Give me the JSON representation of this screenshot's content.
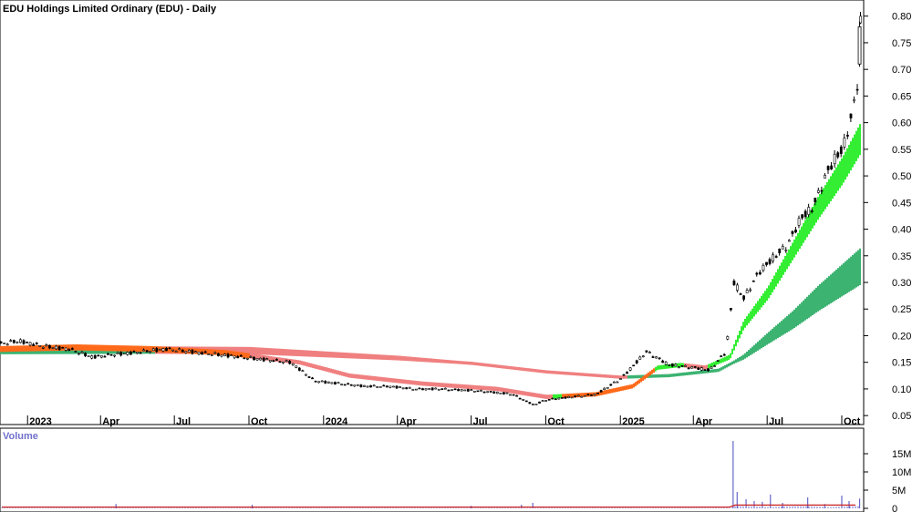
{
  "chart_data": {
    "type": "candlestick",
    "title": "EDU Holdings Limited Ordinary (EDU) - Daily",
    "y_ticks": [
      "0.80",
      "0.75",
      "0.70",
      "0.65",
      "0.60",
      "0.55",
      "0.50",
      "0.45",
      "0.40",
      "0.35",
      "0.30",
      "0.25",
      "0.20",
      "0.15",
      "0.10",
      "0.05"
    ],
    "ylim": [
      0.04,
      0.82
    ],
    "x_ticks": [
      {
        "label": "2023",
        "date": "2023-01-01"
      },
      {
        "label": "Apr",
        "date": "2023-04-01"
      },
      {
        "label": "Jul",
        "date": "2023-07-01"
      },
      {
        "label": "Oct",
        "date": "2023-10-01"
      },
      {
        "label": "2024",
        "date": "2024-01-01"
      },
      {
        "label": "Apr",
        "date": "2024-04-01"
      },
      {
        "label": "Jul",
        "date": "2024-07-01"
      },
      {
        "label": "Oct",
        "date": "2024-10-01"
      },
      {
        "label": "2025",
        "date": "2025-01-01"
      },
      {
        "label": "Apr",
        "date": "2025-04-01"
      },
      {
        "label": "Jul",
        "date": "2025-07-01"
      },
      {
        "label": "Oct",
        "date": "2025-10-01"
      }
    ],
    "xlim": [
      "2022-11-28",
      "2025-10-28"
    ],
    "price": [
      [
        "2022-11-28",
        0.185
      ],
      [
        "2022-12-20",
        0.19
      ],
      [
        "2023-01-20",
        0.18
      ],
      [
        "2023-02-20",
        0.175
      ],
      [
        "2023-03-20",
        0.16
      ],
      [
        "2023-04-20",
        0.165
      ],
      [
        "2023-05-20",
        0.17
      ],
      [
        "2023-06-20",
        0.175
      ],
      [
        "2023-07-20",
        0.17
      ],
      [
        "2023-08-20",
        0.165
      ],
      [
        "2023-09-20",
        0.16
      ],
      [
        "2023-10-20",
        0.155
      ],
      [
        "2023-11-20",
        0.15
      ],
      [
        "2023-12-20",
        0.115
      ],
      [
        "2024-01-20",
        0.11
      ],
      [
        "2024-02-20",
        0.105
      ],
      [
        "2024-03-20",
        0.105
      ],
      [
        "2024-04-20",
        0.1
      ],
      [
        "2024-05-20",
        0.1
      ],
      [
        "2024-06-20",
        0.098
      ],
      [
        "2024-07-20",
        0.095
      ],
      [
        "2024-08-20",
        0.09
      ],
      [
        "2024-09-15",
        0.07
      ],
      [
        "2024-10-01",
        0.08
      ],
      [
        "2024-11-01",
        0.085
      ],
      [
        "2024-12-01",
        0.09
      ],
      [
        "2025-01-01",
        0.12
      ],
      [
        "2025-02-01",
        0.17
      ],
      [
        "2025-03-01",
        0.145
      ],
      [
        "2025-04-01",
        0.14
      ],
      [
        "2025-04-20",
        0.135
      ],
      [
        "2025-05-10",
        0.17
      ],
      [
        "2025-05-20",
        0.3
      ],
      [
        "2025-06-01",
        0.27
      ],
      [
        "2025-06-20",
        0.32
      ],
      [
        "2025-07-10",
        0.35
      ],
      [
        "2025-07-25",
        0.37
      ],
      [
        "2025-08-10",
        0.42
      ],
      [
        "2025-08-25",
        0.44
      ],
      [
        "2025-09-10",
        0.5
      ],
      [
        "2025-09-20",
        0.53
      ],
      [
        "2025-10-01",
        0.55
      ],
      [
        "2025-10-10",
        0.6
      ],
      [
        "2025-10-17",
        0.65
      ],
      [
        "2025-10-22",
        0.71
      ],
      [
        "2025-10-23",
        0.79
      ]
    ],
    "ma_short": [
      [
        "2022-11-28",
        0.175
      ],
      [
        "2023-03-01",
        0.178
      ],
      [
        "2023-06-01",
        0.175
      ],
      [
        "2023-09-01",
        0.168
      ],
      [
        "2023-12-01",
        0.15
      ],
      [
        "2024-02-01",
        0.125
      ],
      [
        "2024-05-01",
        0.11
      ],
      [
        "2024-08-01",
        0.1
      ],
      [
        "2024-10-01",
        0.085
      ],
      [
        "2024-12-01",
        0.09
      ],
      [
        "2025-01-15",
        0.105
      ],
      [
        "2025-02-15",
        0.14
      ],
      [
        "2025-03-15",
        0.145
      ],
      [
        "2025-04-15",
        0.14
      ],
      [
        "2025-05-15",
        0.16
      ],
      [
        "2025-06-01",
        0.22
      ],
      [
        "2025-07-01",
        0.28
      ],
      [
        "2025-08-01",
        0.36
      ],
      [
        "2025-09-01",
        0.44
      ],
      [
        "2025-10-01",
        0.51
      ],
      [
        "2025-10-23",
        0.57
      ]
    ],
    "ma_long": [
      [
        "2022-11-28",
        0.172
      ],
      [
        "2023-06-01",
        0.173
      ],
      [
        "2023-10-01",
        0.172
      ],
      [
        "2024-01-01",
        0.165
      ],
      [
        "2024-04-01",
        0.158
      ],
      [
        "2024-07-01",
        0.148
      ],
      [
        "2024-10-01",
        0.132
      ],
      [
        "2025-01-01",
        0.122
      ],
      [
        "2025-03-01",
        0.125
      ],
      [
        "2025-05-01",
        0.135
      ],
      [
        "2025-06-01",
        0.16
      ],
      [
        "2025-07-01",
        0.195
      ],
      [
        "2025-08-01",
        0.23
      ],
      [
        "2025-09-01",
        0.27
      ],
      [
        "2025-10-23",
        0.33
      ]
    ],
    "volume_title": "Volume",
    "volume_ticks": [
      "15M",
      "10M",
      "5M",
      "0"
    ],
    "volume_max": 19,
    "volume_spikes": [
      [
        "2023-04-20",
        1.2
      ],
      [
        "2023-10-05",
        1.0
      ],
      [
        "2024-07-01",
        0.7
      ],
      [
        "2024-09-01",
        1.0
      ],
      [
        "2024-09-15",
        1.5
      ],
      [
        "2025-05-20",
        18.5
      ],
      [
        "2025-05-25",
        4.5
      ],
      [
        "2025-06-05",
        2.5
      ],
      [
        "2025-06-15",
        2.0
      ],
      [
        "2025-06-25",
        1.8
      ],
      [
        "2025-07-05",
        3.8
      ],
      [
        "2025-07-20",
        1.5
      ],
      [
        "2025-08-20",
        3.0
      ],
      [
        "2025-09-10",
        1.2
      ],
      [
        "2025-10-01",
        3.5
      ],
      [
        "2025-10-10",
        2.0
      ],
      [
        "2025-10-23",
        2.7
      ]
    ],
    "colors": {
      "up_band": "#33ee33",
      "down_band": "#f08080",
      "mixed_band": "#ff6a1a",
      "long_up_band": "#3cb371",
      "volume_bar": "#6666cc",
      "volume_avg": "#cc2222",
      "volume_title": "#7070cc"
    }
  }
}
